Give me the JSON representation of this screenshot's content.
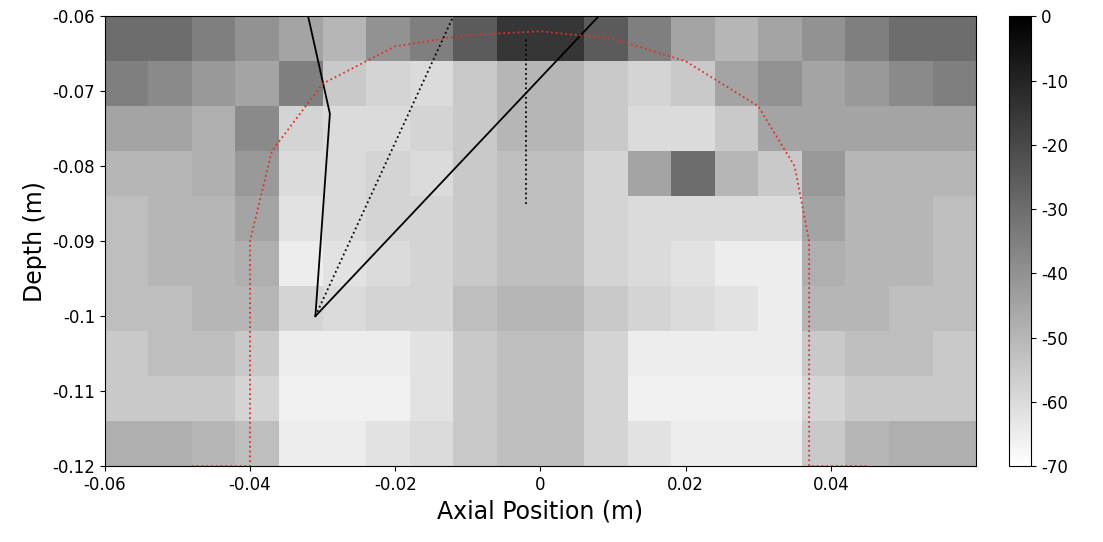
{
  "chart_data": {
    "type": "heatmap",
    "x_label": "Axial Position (m)",
    "y_label": "Depth (m)",
    "xlim": [
      -0.06,
      0.06
    ],
    "xticks": [
      -0.06,
      -0.04,
      -0.02,
      0,
      0.02,
      0.04
    ],
    "ylim": [
      -0.12,
      -0.06
    ],
    "yticks": [
      -0.06,
      -0.07,
      -0.08,
      -0.09,
      -0.1,
      -0.11,
      -0.12
    ],
    "x_edges": [
      -0.06,
      -0.054,
      -0.048,
      -0.042,
      -0.036,
      -0.03,
      -0.024,
      -0.018,
      -0.012,
      -0.006,
      0,
      0.006,
      0.012,
      0.018,
      0.024,
      0.03,
      0.036,
      0.042,
      0.048,
      0.054,
      0.06
    ],
    "y_edges": [
      -0.06,
      -0.066,
      -0.072,
      -0.078,
      -0.084,
      -0.09,
      -0.096,
      -0.102,
      -0.108,
      -0.114,
      -0.12
    ],
    "cells": [
      [
        -30,
        -30,
        -35,
        -40,
        -45,
        -50,
        -40,
        -35,
        -25,
        -15,
        -15,
        -25,
        -35,
        -45,
        -50,
        -45,
        -40,
        -35,
        -30,
        -30
      ],
      [
        -35,
        -38,
        -42,
        -45,
        -35,
        -55,
        -58,
        -60,
        -55,
        -50,
        -50,
        -55,
        -58,
        -55,
        -45,
        -40,
        -45,
        -42,
        -38,
        -35
      ],
      [
        -45,
        -45,
        -48,
        -38,
        -58,
        -60,
        -60,
        -58,
        -55,
        -50,
        -50,
        -55,
        -60,
        -60,
        -55,
        -45,
        -45,
        -45,
        -45,
        -45
      ],
      [
        -50,
        -50,
        -48,
        -42,
        -60,
        -60,
        -58,
        -60,
        -55,
        -52,
        -52,
        -58,
        -45,
        -30,
        -50,
        -55,
        -42,
        -50,
        -50,
        -50
      ],
      [
        -52,
        -50,
        -50,
        -45,
        -62,
        -60,
        -58,
        -58,
        -55,
        -52,
        -52,
        -58,
        -60,
        -60,
        -60,
        -60,
        -45,
        -50,
        -50,
        -52
      ],
      [
        -52,
        -50,
        -50,
        -48,
        -65,
        -62,
        -60,
        -58,
        -55,
        -52,
        -52,
        -58,
        -60,
        -62,
        -65,
        -65,
        -48,
        -50,
        -50,
        -52
      ],
      [
        -52,
        -52,
        -50,
        -50,
        -58,
        -60,
        -58,
        -58,
        -52,
        -50,
        -50,
        -55,
        -58,
        -60,
        -62,
        -65,
        -50,
        -50,
        -52,
        -52
      ],
      [
        -55,
        -52,
        -52,
        -55,
        -65,
        -65,
        -65,
        -62,
        -55,
        -52,
        -52,
        -58,
        -65,
        -65,
        -65,
        -65,
        -55,
        -52,
        -52,
        -55
      ],
      [
        -55,
        -55,
        -55,
        -58,
        -66,
        -66,
        -66,
        -62,
        -55,
        -52,
        -52,
        -58,
        -66,
        -66,
        -66,
        -66,
        -58,
        -55,
        -55,
        -55
      ],
      [
        -48,
        -48,
        -50,
        -52,
        -65,
        -65,
        -62,
        -60,
        -55,
        -52,
        -52,
        -58,
        -62,
        -65,
        -65,
        -65,
        -55,
        -50,
        -48,
        -48
      ]
    ],
    "colorbar_range": [
      -70,
      0
    ],
    "colorbar_ticks": [
      0,
      -10,
      -20,
      -30,
      -40,
      -50,
      -60,
      -70
    ],
    "lines": [
      {
        "x": [
          -0.031,
          -0.029,
          -0.032
        ],
        "y": [
          -0.1,
          -0.073,
          -0.06
        ],
        "color": "#000000",
        "line_style": "solid"
      },
      {
        "x": [
          -0.031,
          -0.012
        ],
        "y": [
          -0.1,
          -0.06
        ],
        "color": "#000000",
        "line_style": "dotted"
      },
      {
        "x": [
          -0.031,
          0.008
        ],
        "y": [
          -0.1,
          -0.06
        ],
        "color": "#000000",
        "line_style": "solid"
      },
      {
        "x": [
          -0.002,
          -0.002
        ],
        "y": [
          -0.085,
          -0.063
        ],
        "color": "#000000",
        "line_style": "dotted"
      },
      {
        "x": [
          -0.048,
          -0.04,
          -0.04,
          -0.037,
          -0.03,
          -0.02,
          -0.01,
          0,
          0.01,
          0.02,
          0.03,
          0.035,
          0.037,
          0.037,
          0.045
        ],
        "y": [
          -0.12,
          -0.12,
          -0.09,
          -0.078,
          -0.069,
          -0.064,
          -0.0625,
          -0.062,
          -0.063,
          -0.066,
          -0.072,
          -0.08,
          -0.09,
          -0.12,
          -0.12
        ],
        "color": "#e03030",
        "line_style": "dotted"
      }
    ]
  }
}
